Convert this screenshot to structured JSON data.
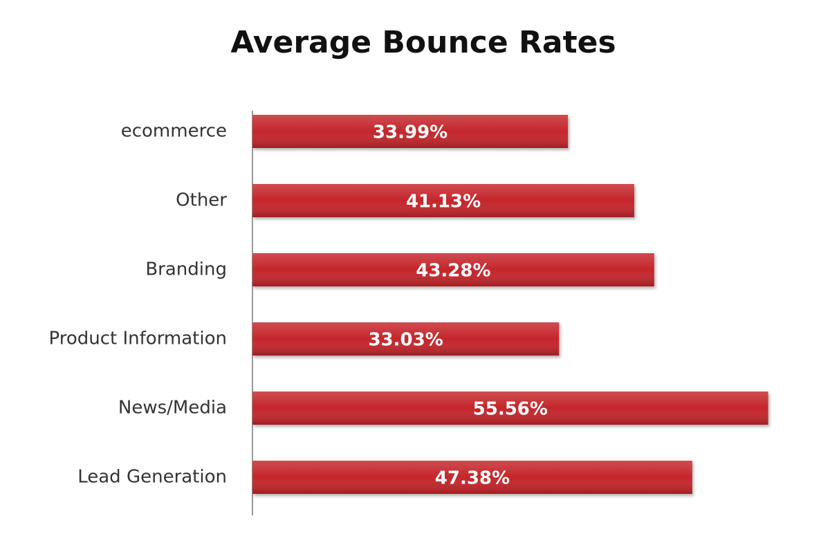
{
  "chart_data": {
    "type": "bar",
    "orientation": "horizontal",
    "title": "Average Bounce Rates",
    "categories": [
      "ecommerce",
      "Other",
      "Branding",
      "Product Information",
      "News/Media",
      "Lead Generation"
    ],
    "values": [
      33.99,
      41.13,
      43.28,
      33.03,
      55.56,
      47.38
    ],
    "value_labels": [
      "33.99%",
      "41.13%",
      "43.28%",
      "33.03%",
      "55.56%",
      "47.38%"
    ],
    "color": "#c4262b"
  }
}
